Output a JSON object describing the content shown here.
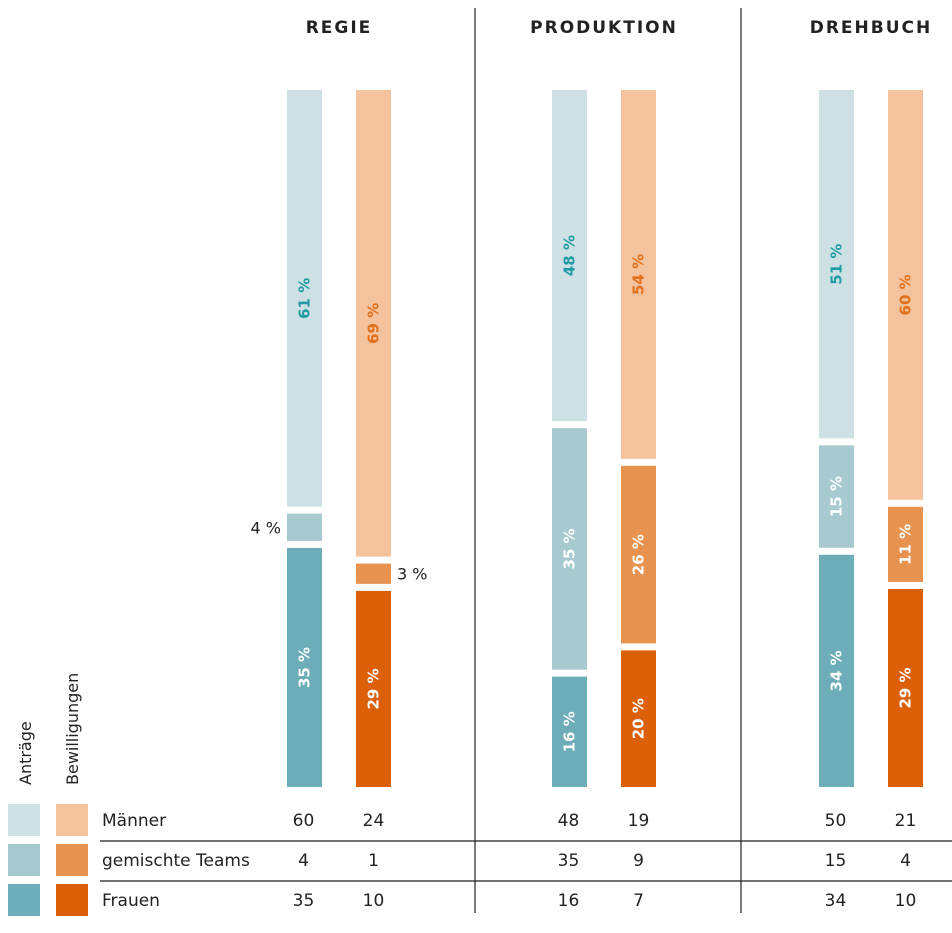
{
  "chart_data": {
    "type": "bar",
    "groups": [
      {
        "title": "REGIE",
        "antraege": {
          "Männer": 61,
          "gemischte Teams": 4,
          "Frauen": 35
        },
        "bewilligungen": {
          "Männer": 69,
          "gemischte Teams": 3,
          "Frauen": 29
        },
        "counts": {
          "Männer": [
            60,
            24
          ],
          "gemischte Teams": [
            4,
            1
          ],
          "Frauen": [
            35,
            10
          ]
        }
      },
      {
        "title": "PRODUKTION",
        "antraege": {
          "Männer": 48,
          "gemischte Teams": 35,
          "Frauen": 16
        },
        "bewilligungen": {
          "Männer": 54,
          "gemischte Teams": 26,
          "Frauen": 20
        },
        "counts": {
          "Männer": [
            48,
            19
          ],
          "gemischte Teams": [
            35,
            9
          ],
          "Frauen": [
            16,
            7
          ]
        }
      },
      {
        "title": "DREHBUCH",
        "antraege": {
          "Männer": 51,
          "gemischte Teams": 15,
          "Frauen": 34
        },
        "bewilligungen": {
          "Männer": 60,
          "gemischte Teams": 11,
          "Frauen": 29
        },
        "counts": {
          "Männer": [
            50,
            21
          ],
          "gemischte Teams": [
            15,
            4
          ],
          "Frauen": [
            34,
            10
          ]
        }
      }
    ],
    "categories": [
      "Männer",
      "gemischte Teams",
      "Frauen"
    ],
    "series_labels": [
      "Anträge",
      "Bewilligungen"
    ],
    "percent_suffix": " %",
    "colors": {
      "antraege": {
        "Männer": "#cde1e4",
        "gemischte Teams": "#a6cad0",
        "Frauen": "#6cadb8"
      },
      "bewilligungen": {
        "Männer": "#f4c29d",
        "gemischte Teams": "#e8924f",
        "Frauen": "#dc5f0a"
      },
      "label_antraege_light": "#1f9ba5",
      "label_bewilligungen_light": "#e2701a",
      "label_on_dark": "#ffffff"
    }
  }
}
